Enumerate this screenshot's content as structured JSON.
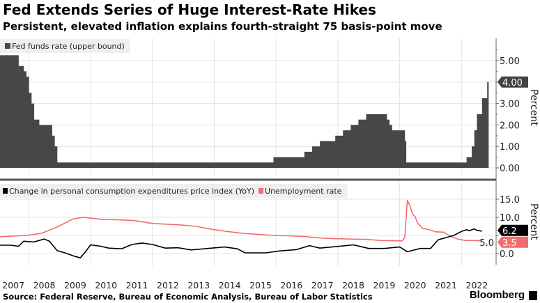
{
  "title": "Fed Extends Series of Huge Interest-Rate Hikes",
  "subtitle": "Persistent, elevated inflation explains fourth-straight 75 basis-point move",
  "source": "Source: Federal Reserve, Bureau of Economic Analysis, Bureau of Labor Statistics",
  "brand": "Bloomberg",
  "colors": {
    "bar": "#474747",
    "pce": "#000000",
    "unemployment": "#f26d6d",
    "grid": "#e4e4e4",
    "legend_bg": "#efefef"
  },
  "chart_data": [
    {
      "type": "area",
      "title": "Fed funds rate (upper bound)",
      "legend": [
        "Fed funds rate (upper bound)"
      ],
      "ylabel": "Percent",
      "ylim": [
        0,
        5.8
      ],
      "yticks": [
        "0.00",
        "1.00",
        "2.00",
        "3.00",
        "4.00",
        "5.00"
      ],
      "last_value_label": "4.00",
      "grid": true,
      "series": [
        {
          "name": "Fed funds rate (upper bound)",
          "steps": [
            [
              "2007-01",
              5.25
            ],
            [
              "2007-09",
              4.75
            ],
            [
              "2007-11",
              4.5
            ],
            [
              "2007-12",
              4.25
            ],
            [
              "2008-01",
              3.5
            ],
            [
              "2008-02",
              3.0
            ],
            [
              "2008-03",
              2.25
            ],
            [
              "2008-05",
              2.0
            ],
            [
              "2008-10",
              1.5
            ],
            [
              "2008-11",
              1.0
            ],
            [
              "2008-12",
              0.25
            ],
            [
              "2015-12",
              0.5
            ],
            [
              "2016-12",
              0.75
            ],
            [
              "2017-03",
              1.0
            ],
            [
              "2017-06",
              1.25
            ],
            [
              "2017-12",
              1.5
            ],
            [
              "2018-03",
              1.75
            ],
            [
              "2018-06",
              2.0
            ],
            [
              "2018-09",
              2.25
            ],
            [
              "2018-12",
              2.5
            ],
            [
              "2019-08",
              2.25
            ],
            [
              "2019-09",
              2.0
            ],
            [
              "2019-10",
              1.75
            ],
            [
              "2020-03",
              1.25
            ],
            [
              "2020-03.5",
              0.25
            ],
            [
              "2022-03",
              0.5
            ],
            [
              "2022-05",
              1.0
            ],
            [
              "2022-06",
              1.75
            ],
            [
              "2022-07",
              2.5
            ],
            [
              "2022-09",
              3.25
            ],
            [
              "2022-11",
              4.0
            ],
            [
              "2022-11.5",
              4.0
            ]
          ]
        }
      ]
    },
    {
      "type": "line",
      "legend": [
        "Change in personal consumption expenditures price index (YoY)",
        "Unemployment rate"
      ],
      "ylabel": "Percent",
      "ylim": [
        -4,
        19
      ],
      "yticks": [
        "0.0",
        "5.0",
        "10.0",
        "15.0"
      ],
      "last_value_labels": [
        "6.2",
        "3.5"
      ],
      "grid": true,
      "series": [
        {
          "name": "Change in personal consumption expenditures price index (YoY)",
          "points": [
            [
              "2007-01",
              2.3
            ],
            [
              "2007-06",
              2.3
            ],
            [
              "2007-09",
              2.0
            ],
            [
              "2007-11",
              3.4
            ],
            [
              "2008-03",
              3.2
            ],
            [
              "2008-07",
              4.0
            ],
            [
              "2008-09",
              3.4
            ],
            [
              "2008-12",
              0.8
            ],
            [
              "2009-03",
              0.2
            ],
            [
              "2009-07",
              -0.8
            ],
            [
              "2009-09",
              -1.2
            ],
            [
              "2009-11",
              0.5
            ],
            [
              "2010-01",
              2.4
            ],
            [
              "2010-05",
              2.0
            ],
            [
              "2010-08",
              1.5
            ],
            [
              "2011-01",
              1.3
            ],
            [
              "2011-05",
              2.5
            ],
            [
              "2011-09",
              2.9
            ],
            [
              "2012-01",
              2.5
            ],
            [
              "2012-06",
              1.5
            ],
            [
              "2012-11",
              1.6
            ],
            [
              "2013-04",
              1.0
            ],
            [
              "2013-09",
              1.3
            ],
            [
              "2014-05",
              1.8
            ],
            [
              "2014-10",
              1.3
            ],
            [
              "2015-01",
              0.2
            ],
            [
              "2015-09",
              0.2
            ],
            [
              "2016-02",
              0.7
            ],
            [
              "2016-09",
              1.1
            ],
            [
              "2017-02",
              2.2
            ],
            [
              "2017-06",
              1.5
            ],
            [
              "2018-03",
              2.1
            ],
            [
              "2018-07",
              2.4
            ],
            [
              "2019-01",
              1.4
            ],
            [
              "2019-07",
              1.4
            ],
            [
              "2020-01",
              1.8
            ],
            [
              "2020-04",
              0.5
            ],
            [
              "2020-09",
              1.4
            ],
            [
              "2021-01",
              1.4
            ],
            [
              "2021-04",
              3.8
            ],
            [
              "2021-07",
              4.4
            ],
            [
              "2021-10",
              5.0
            ],
            [
              "2022-01",
              6.1
            ],
            [
              "2022-03",
              6.6
            ],
            [
              "2022-04",
              6.3
            ],
            [
              "2022-06",
              6.8
            ],
            [
              "2022-07",
              6.4
            ],
            [
              "2022-09",
              6.2
            ]
          ]
        },
        {
          "name": "Unemployment rate",
          "points": [
            [
              "2007-01",
              4.6
            ],
            [
              "2007-12",
              5.0
            ],
            [
              "2008-06",
              5.6
            ],
            [
              "2008-12",
              7.3
            ],
            [
              "2009-06",
              9.5
            ],
            [
              "2009-10",
              10.0
            ],
            [
              "2010-06",
              9.4
            ],
            [
              "2010-12",
              9.3
            ],
            [
              "2011-06",
              9.1
            ],
            [
              "2012-01",
              8.3
            ],
            [
              "2012-12",
              7.9
            ],
            [
              "2013-06",
              7.5
            ],
            [
              "2013-12",
              6.7
            ],
            [
              "2014-06",
              6.1
            ],
            [
              "2014-12",
              5.6
            ],
            [
              "2015-06",
              5.3
            ],
            [
              "2015-12",
              5.0
            ],
            [
              "2016-06",
              4.9
            ],
            [
              "2016-12",
              4.7
            ],
            [
              "2017-06",
              4.3
            ],
            [
              "2017-12",
              4.1
            ],
            [
              "2018-06",
              4.0
            ],
            [
              "2018-12",
              3.9
            ],
            [
              "2019-06",
              3.6
            ],
            [
              "2020-02",
              3.5
            ],
            [
              "2020-03",
              4.4
            ],
            [
              "2020-04",
              14.7
            ],
            [
              "2020-05",
              13.2
            ],
            [
              "2020-06",
              11.0
            ],
            [
              "2020-07",
              10.2
            ],
            [
              "2020-08",
              8.4
            ],
            [
              "2020-10",
              6.9
            ],
            [
              "2020-12",
              6.7
            ],
            [
              "2021-03",
              6.0
            ],
            [
              "2021-06",
              5.9
            ],
            [
              "2021-09",
              4.7
            ],
            [
              "2021-12",
              3.9
            ],
            [
              "2022-03",
              3.6
            ],
            [
              "2022-06",
              3.6
            ],
            [
              "2022-09",
              3.5
            ]
          ]
        }
      ]
    }
  ],
  "x_axis": {
    "tick_labels": [
      "2007",
      "2008",
      "2009",
      "2010",
      "2011",
      "2012",
      "2013",
      "2014",
      "2015",
      "2016",
      "2017",
      "2018",
      "2019",
      "2020",
      "2021",
      "2022"
    ]
  }
}
